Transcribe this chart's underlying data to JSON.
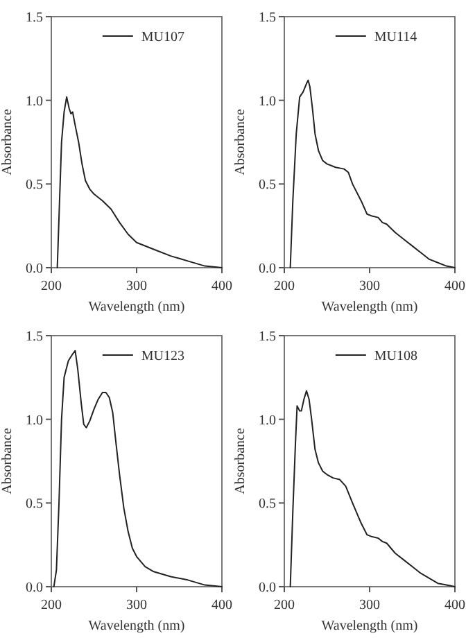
{
  "chart_data": [
    {
      "type": "line",
      "xlabel": "Wavelength (nm)",
      "ylabel": "Absorbance",
      "xlim": [
        200,
        400
      ],
      "xticks": [
        200,
        300,
        400
      ],
      "ylim": [
        0,
        1.5
      ],
      "yticks": [
        {
          "value": 0,
          "label": "0.0"
        },
        {
          "value": 0.5,
          "label": "0.5"
        },
        {
          "value": 1,
          "label": "1.0"
        },
        {
          "value": 1.5,
          "label": "1.5"
        }
      ],
      "legend": "top right",
      "grid": false,
      "marker": "none",
      "line_style": "solid",
      "series": [
        {
          "name": "MU107",
          "color": "#222222",
          "x": [
            207,
            209,
            212,
            215,
            218,
            221,
            223,
            225,
            228,
            232,
            236,
            240,
            245,
            250,
            260,
            270,
            280,
            290,
            300,
            320,
            340,
            360,
            380,
            400
          ],
          "values": [
            0,
            0.3,
            0.75,
            0.93,
            1.02,
            0.95,
            0.92,
            0.93,
            0.85,
            0.75,
            0.62,
            0.52,
            0.47,
            0.44,
            0.4,
            0.35,
            0.27,
            0.2,
            0.15,
            0.11,
            0.07,
            0.04,
            0.01,
            0
          ]
        }
      ]
    },
    {
      "type": "line",
      "xlabel": "Wavelength (nm)",
      "ylabel": "Absorbance",
      "xlim": [
        200,
        400
      ],
      "xticks": [
        200,
        300,
        400
      ],
      "ylim": [
        0,
        1.5
      ],
      "yticks": [
        {
          "value": 0,
          "label": "0.0"
        },
        {
          "value": 0.5,
          "label": "0.5"
        },
        {
          "value": 1,
          "label": "1.0"
        },
        {
          "value": 1.5,
          "label": "1.5"
        }
      ],
      "legend": "top right",
      "grid": false,
      "marker": "none",
      "line_style": "solid",
      "series": [
        {
          "name": "MU114",
          "color": "#222222",
          "x": [
            207,
            210,
            214,
            218,
            222,
            226,
            228,
            230,
            233,
            236,
            240,
            245,
            250,
            260,
            270,
            275,
            280,
            290,
            297,
            302,
            310,
            315,
            320,
            330,
            340,
            350,
            360,
            370,
            380,
            390,
            400
          ],
          "values": [
            0,
            0.4,
            0.8,
            1.02,
            1.05,
            1.1,
            1.12,
            1.08,
            0.95,
            0.8,
            0.7,
            0.64,
            0.62,
            0.6,
            0.59,
            0.57,
            0.5,
            0.4,
            0.32,
            0.31,
            0.3,
            0.27,
            0.26,
            0.21,
            0.17,
            0.13,
            0.09,
            0.05,
            0.03,
            0.01,
            0
          ]
        }
      ]
    },
    {
      "type": "line",
      "xlabel": "Wavelength (nm)",
      "ylabel": "Absorbance",
      "xlim": [
        200,
        400
      ],
      "xticks": [
        200,
        300,
        400
      ],
      "ylim": [
        0,
        1.5
      ],
      "yticks": [
        {
          "value": 0,
          "label": "0.0"
        },
        {
          "value": 0.5,
          "label": "0.5"
        },
        {
          "value": 1,
          "label": "1.0"
        },
        {
          "value": 1.5,
          "label": "1.5"
        }
      ],
      "legend": "top right",
      "grid": false,
      "marker": "none",
      "line_style": "solid",
      "series": [
        {
          "name": "MU123",
          "color": "#222222",
          "x": [
            203,
            206,
            209,
            212,
            215,
            220,
            225,
            228,
            231,
            235,
            238,
            241,
            245,
            250,
            255,
            260,
            264,
            268,
            272,
            276,
            280,
            285,
            290,
            295,
            300,
            310,
            320,
            340,
            360,
            380,
            400
          ],
          "values": [
            0,
            0.1,
            0.5,
            1.0,
            1.25,
            1.35,
            1.39,
            1.41,
            1.3,
            1.1,
            0.97,
            0.95,
            0.99,
            1.06,
            1.12,
            1.16,
            1.16,
            1.13,
            1.04,
            0.85,
            0.67,
            0.47,
            0.33,
            0.23,
            0.18,
            0.12,
            0.09,
            0.06,
            0.04,
            0.01,
            0
          ]
        }
      ]
    },
    {
      "type": "line",
      "xlabel": "Wavelength (nm)",
      "ylabel": "Absorbance",
      "xlim": [
        200,
        400
      ],
      "xticks": [
        200,
        300,
        400
      ],
      "ylim": [
        0,
        1.5
      ],
      "yticks": [
        {
          "value": 0,
          "label": "0.0"
        },
        {
          "value": 0.5,
          "label": "0.5"
        },
        {
          "value": 1,
          "label": "1.0"
        },
        {
          "value": 1.5,
          "label": "1.5"
        }
      ],
      "legend": "top right",
      "grid": false,
      "marker": "none",
      "line_style": "solid",
      "series": [
        {
          "name": "MU108",
          "color": "#222222",
          "x": [
            207,
            210,
            213,
            215,
            218,
            220,
            223,
            226,
            229,
            232,
            236,
            240,
            245,
            250,
            257,
            265,
            272,
            280,
            290,
            297,
            302,
            310,
            315,
            320,
            330,
            340,
            350,
            360,
            370,
            380,
            390,
            400
          ],
          "values": [
            0,
            0.45,
            0.85,
            1.08,
            1.05,
            1.05,
            1.12,
            1.17,
            1.12,
            1.0,
            0.82,
            0.74,
            0.69,
            0.67,
            0.65,
            0.64,
            0.6,
            0.5,
            0.38,
            0.31,
            0.3,
            0.29,
            0.27,
            0.26,
            0.2,
            0.16,
            0.12,
            0.08,
            0.05,
            0.02,
            0.01,
            0
          ]
        }
      ]
    }
  ]
}
